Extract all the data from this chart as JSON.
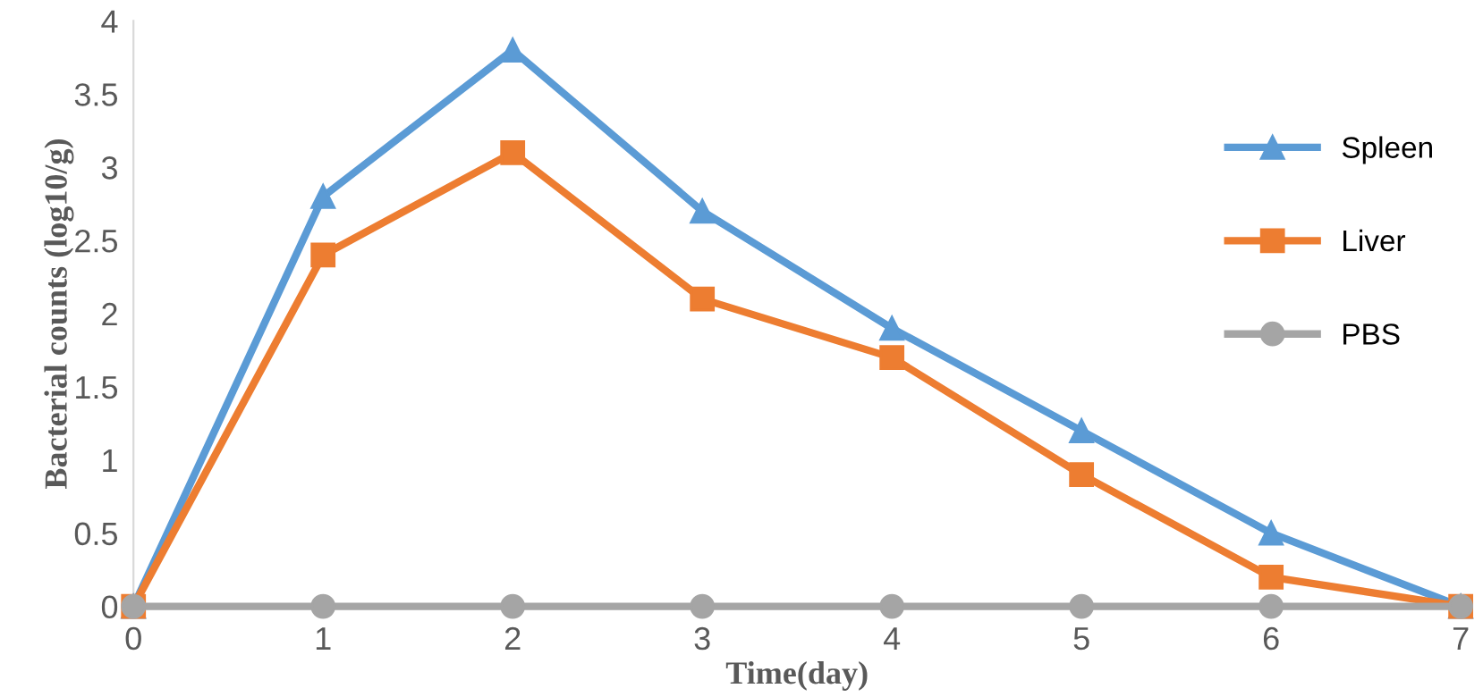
{
  "chart_data": {
    "type": "line",
    "xlabel": "Time(day)",
    "ylabel": "Bacterial counts (log10/g)",
    "x": [
      0,
      1,
      2,
      3,
      4,
      5,
      6,
      7
    ],
    "series": [
      {
        "name": "Spleen",
        "color": "#5b9bd5",
        "marker": "triangle",
        "values": [
          0,
          2.8,
          3.8,
          2.7,
          1.9,
          1.2,
          0.5,
          0
        ]
      },
      {
        "name": "Liver",
        "color": "#ed7d31",
        "marker": "square",
        "values": [
          0,
          2.4,
          3.1,
          2.1,
          1.7,
          0.9,
          0.2,
          0
        ]
      },
      {
        "name": "PBS",
        "color": "#a5a5a5",
        "marker": "circle",
        "values": [
          0,
          0,
          0,
          0,
          0,
          0,
          0,
          0
        ]
      }
    ],
    "xlim": [
      0,
      7
    ],
    "xticks": [
      0,
      1,
      2,
      3,
      4,
      5,
      6,
      7
    ],
    "ylim": [
      0,
      4
    ],
    "yticks": [
      0,
      0.5,
      1,
      1.5,
      2,
      2.5,
      3,
      3.5,
      4
    ],
    "grid": false,
    "legend": "right",
    "line_style": "solid"
  }
}
